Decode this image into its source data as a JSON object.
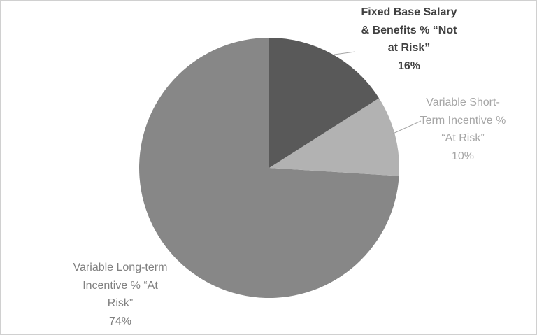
{
  "chart_data": {
    "type": "pie",
    "categories": [
      "Fixed Base Salary & Benefits % “Not at Risk”",
      "Variable Short-Term Incentive % “At Risk”",
      "Variable Long-term Incentive % “At Risk”"
    ],
    "values": [
      16,
      10,
      74
    ],
    "value_labels": [
      "16%",
      "10%",
      "74%"
    ],
    "colors": [
      "#595959",
      "#b2b2b2",
      "#878787"
    ],
    "label_colors": [
      "#404040",
      "#a6a6a6",
      "#808080"
    ]
  }
}
